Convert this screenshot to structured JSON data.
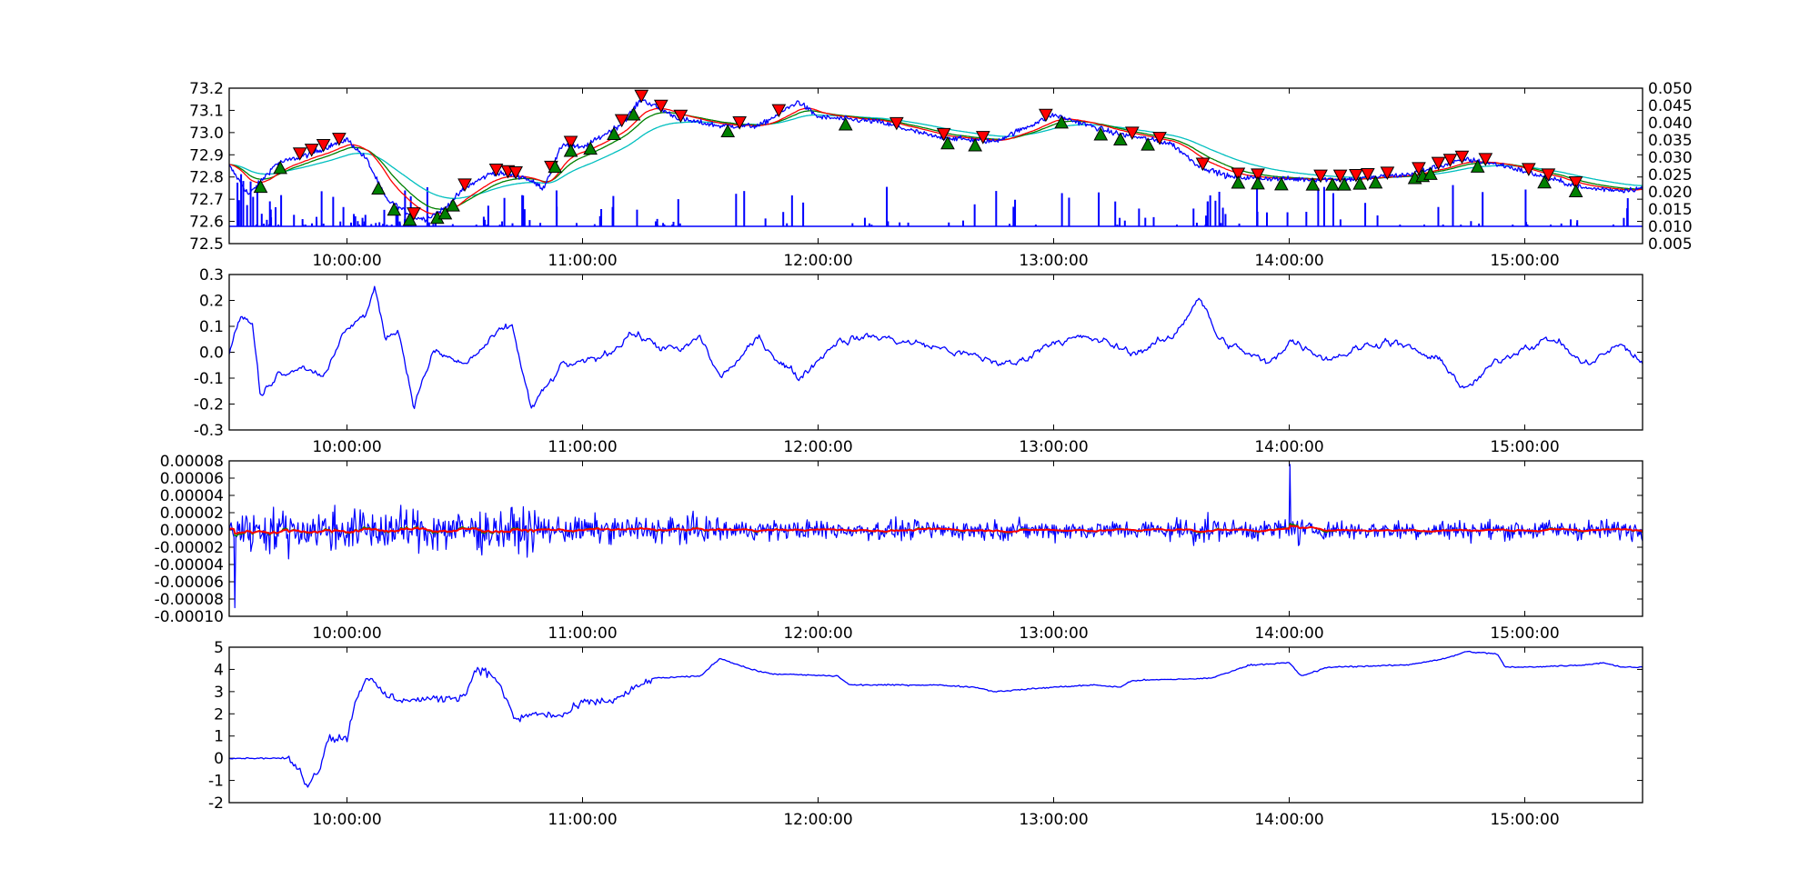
{
  "chart_data": [
    {
      "type": "line",
      "panel": "price",
      "x_range": [
        "09:30:00",
        "15:30:00"
      ],
      "x_ticks": [
        "10:00:00",
        "11:00:00",
        "12:00:00",
        "13:00:00",
        "14:00:00",
        "15:00:00"
      ],
      "ylim": [
        72.5,
        73.2
      ],
      "y_ticks": [
        "72.5",
        "72.6",
        "72.7",
        "72.8",
        "72.9",
        "73.0",
        "73.1",
        "73.2"
      ],
      "secondary_axis": {
        "ylim": [
          0.005,
          0.05
        ],
        "y_ticks": [
          "0.005",
          "0.010",
          "0.015",
          "0.020",
          "0.025",
          "0.030",
          "0.035",
          "0.040",
          "0.045",
          "0.050"
        ],
        "series": {
          "type": "bar",
          "color": "#0000ff",
          "baseline": 0.01
        }
      },
      "price_anchors": [
        [
          "09:30",
          72.85
        ],
        [
          "09:35",
          72.72
        ],
        [
          "09:42",
          72.86
        ],
        [
          "09:50",
          72.9
        ],
        [
          "10:00",
          72.97
        ],
        [
          "10:05",
          72.88
        ],
        [
          "10:10",
          72.7
        ],
        [
          "10:17",
          72.62
        ],
        [
          "10:20",
          72.61
        ],
        [
          "10:25",
          72.66
        ],
        [
          "10:30",
          72.75
        ],
        [
          "10:37",
          72.82
        ],
        [
          "10:45",
          72.8
        ],
        [
          "10:50",
          72.75
        ],
        [
          "10:55",
          72.95
        ],
        [
          "11:00",
          72.93
        ],
        [
          "11:10",
          73.04
        ],
        [
          "11:15",
          73.15
        ],
        [
          "11:25",
          73.06
        ],
        [
          "11:35",
          73.03
        ],
        [
          "11:45",
          73.03
        ],
        [
          "11:55",
          73.14
        ],
        [
          "12:00",
          73.07
        ],
        [
          "12:15",
          73.05
        ],
        [
          "12:30",
          72.98
        ],
        [
          "12:45",
          72.96
        ],
        [
          "13:00",
          73.08
        ],
        [
          "13:15",
          73.0
        ],
        [
          "13:30",
          72.95
        ],
        [
          "13:37",
          72.85
        ],
        [
          "13:45",
          72.8
        ],
        [
          "14:00",
          72.79
        ],
        [
          "14:15",
          72.79
        ],
        [
          "14:30",
          72.81
        ],
        [
          "14:45",
          72.88
        ],
        [
          "14:55",
          72.85
        ],
        [
          "15:05",
          72.8
        ],
        [
          "15:15",
          72.75
        ],
        [
          "15:25",
          72.74
        ],
        [
          "15:30",
          72.75
        ]
      ],
      "series": [
        {
          "color": "#0000ff",
          "style": "raw"
        },
        {
          "color": "#ff0000",
          "style": "moving-average"
        },
        {
          "color": "#008000",
          "style": "moving-average"
        },
        {
          "color": "#00bfbf",
          "style": "moving-average"
        }
      ],
      "sell_markers": [
        "09:48",
        "09:51",
        "09:54",
        "09:58",
        "10:17",
        "10:30",
        "10:38",
        "10:41",
        "10:43",
        "10:52",
        "10:57",
        "11:10",
        "11:15",
        "11:20",
        "11:25",
        "11:40",
        "11:50",
        "12:20",
        "12:32",
        "12:42",
        "12:58",
        "13:20",
        "13:27",
        "13:38",
        "13:47",
        "13:52",
        "14:08",
        "14:13",
        "14:17",
        "14:20",
        "14:25",
        "14:33",
        "14:38",
        "14:41",
        "14:44",
        "14:50",
        "15:01",
        "15:06",
        "15:13"
      ],
      "buy_markers": [
        "09:38",
        "09:43",
        "10:08",
        "10:12",
        "10:16",
        "10:23",
        "10:25",
        "10:27",
        "10:53",
        "10:57",
        "11:02",
        "11:08",
        "11:13",
        "11:37",
        "12:07",
        "12:33",
        "12:40",
        "13:02",
        "13:12",
        "13:17",
        "13:24",
        "13:47",
        "13:52",
        "13:58",
        "14:06",
        "14:11",
        "14:14",
        "14:18",
        "14:22",
        "14:32",
        "14:34",
        "14:36",
        "14:48",
        "15:05",
        "15:13"
      ],
      "marker_colors": {
        "sell": "#ff0000",
        "buy": "#008000",
        "edge": "#000000"
      }
    },
    {
      "type": "line",
      "panel": "oscillator",
      "x_range": [
        "09:30:00",
        "15:30:00"
      ],
      "x_ticks": [
        "10:00:00",
        "11:00:00",
        "12:00:00",
        "13:00:00",
        "14:00:00",
        "15:00:00"
      ],
      "ylim": [
        -0.3,
        0.3
      ],
      "y_ticks": [
        "-0.3",
        "-0.2",
        "-0.1",
        "0.0",
        "0.1",
        "0.2",
        "0.3"
      ],
      "anchors": [
        [
          "09:30",
          0.0
        ],
        [
          "09:33",
          0.15
        ],
        [
          "09:36",
          0.1
        ],
        [
          "09:38",
          -0.18
        ],
        [
          "09:42",
          -0.08
        ],
        [
          "09:48",
          -0.05
        ],
        [
          "09:55",
          -0.08
        ],
        [
          "10:00",
          0.1
        ],
        [
          "10:05",
          0.15
        ],
        [
          "10:07",
          0.24
        ],
        [
          "10:10",
          0.05
        ],
        [
          "10:13",
          0.1
        ],
        [
          "10:17",
          -0.2
        ],
        [
          "10:22",
          0.0
        ],
        [
          "10:30",
          -0.05
        ],
        [
          "10:37",
          0.05
        ],
        [
          "10:42",
          0.1
        ],
        [
          "10:47",
          -0.22
        ],
        [
          "10:55",
          -0.05
        ],
        [
          "11:00",
          -0.05
        ],
        [
          "11:07",
          0.0
        ],
        [
          "11:12",
          0.08
        ],
        [
          "11:20",
          0.02
        ],
        [
          "11:25",
          0.0
        ],
        [
          "11:30",
          0.06
        ],
        [
          "11:35",
          -0.1
        ],
        [
          "11:45",
          0.05
        ],
        [
          "11:55",
          -0.1
        ],
        [
          "12:05",
          0.05
        ],
        [
          "12:15",
          0.06
        ],
        [
          "12:30",
          0.02
        ],
        [
          "12:40",
          -0.02
        ],
        [
          "12:50",
          -0.05
        ],
        [
          "13:00",
          0.05
        ],
        [
          "13:10",
          0.05
        ],
        [
          "13:20",
          0.0
        ],
        [
          "13:30",
          0.05
        ],
        [
          "13:37",
          0.22
        ],
        [
          "13:42",
          0.05
        ],
        [
          "13:55",
          -0.05
        ],
        [
          "14:00",
          0.05
        ],
        [
          "14:10",
          -0.02
        ],
        [
          "14:25",
          0.05
        ],
        [
          "14:40",
          -0.05
        ],
        [
          "14:45",
          -0.15
        ],
        [
          "14:52",
          -0.05
        ],
        [
          "15:00",
          0.03
        ],
        [
          "15:08",
          0.05
        ],
        [
          "15:15",
          -0.05
        ],
        [
          "15:25",
          0.03
        ],
        [
          "15:30",
          -0.05
        ]
      ],
      "series": [
        {
          "color": "#0000ff"
        }
      ]
    },
    {
      "type": "line",
      "panel": "returns",
      "x_range": [
        "09:30:00",
        "15:30:00"
      ],
      "x_ticks": [
        "10:00:00",
        "11:00:00",
        "12:00:00",
        "13:00:00",
        "14:00:00",
        "15:00:00"
      ],
      "ylim": [
        -0.0001,
        8e-05
      ],
      "y_ticks": [
        "-0.00010",
        "-0.00008",
        "-0.00006",
        "-0.00004",
        "-0.00002",
        "0.00000",
        "0.00002",
        "0.00004",
        "0.00006",
        "0.00008"
      ],
      "series": [
        {
          "color": "#0000ff",
          "style": "raw"
        },
        {
          "color": "#008000",
          "style": "smoothed"
        },
        {
          "color": "#ff0000",
          "style": "smoothed"
        }
      ]
    },
    {
      "type": "line",
      "panel": "cumulative",
      "x_range": [
        "09:30:00",
        "15:30:00"
      ],
      "x_ticks": [
        "10:00:00",
        "11:00:00",
        "12:00:00",
        "13:00:00",
        "14:00:00",
        "15:00:00"
      ],
      "ylim": [
        -2,
        5
      ],
      "y_ticks": [
        "-2",
        "-1",
        "0",
        "1",
        "2",
        "3",
        "4",
        "5"
      ],
      "anchors": [
        [
          "09:30",
          0.0
        ],
        [
          "09:45",
          0.0
        ],
        [
          "09:48",
          -0.6
        ],
        [
          "09:50",
          -1.2
        ],
        [
          "09:53",
          -0.5
        ],
        [
          "09:55",
          0.9
        ],
        [
          "10:00",
          0.9
        ],
        [
          "10:02",
          2.5
        ],
        [
          "10:05",
          3.7
        ],
        [
          "10:10",
          2.8
        ],
        [
          "10:15",
          2.6
        ],
        [
          "10:25",
          2.7
        ],
        [
          "10:30",
          2.8
        ],
        [
          "10:33",
          4.1
        ],
        [
          "10:38",
          3.6
        ],
        [
          "10:43",
          1.7
        ],
        [
          "10:47",
          2.0
        ],
        [
          "10:55",
          1.9
        ],
        [
          "11:00",
          2.5
        ],
        [
          "11:08",
          2.6
        ],
        [
          "11:13",
          3.1
        ],
        [
          "11:18",
          3.6
        ],
        [
          "11:30",
          3.7
        ],
        [
          "11:35",
          4.5
        ],
        [
          "11:43",
          4.0
        ],
        [
          "11:48",
          3.8
        ],
        [
          "12:05",
          3.7
        ],
        [
          "12:08",
          3.3
        ],
        [
          "12:30",
          3.3
        ],
        [
          "12:40",
          3.2
        ],
        [
          "12:45",
          3.0
        ],
        [
          "13:00",
          3.2
        ],
        [
          "13:10",
          3.3
        ],
        [
          "13:17",
          3.2
        ],
        [
          "13:20",
          3.5
        ],
        [
          "13:40",
          3.6
        ],
        [
          "13:50",
          4.2
        ],
        [
          "14:00",
          4.3
        ],
        [
          "14:03",
          3.7
        ],
        [
          "14:10",
          4.1
        ],
        [
          "14:30",
          4.2
        ],
        [
          "14:40",
          4.5
        ],
        [
          "14:45",
          4.8
        ],
        [
          "14:53",
          4.7
        ],
        [
          "14:55",
          4.1
        ],
        [
          "15:00",
          4.1
        ],
        [
          "15:15",
          4.2
        ],
        [
          "15:20",
          4.3
        ],
        [
          "15:25",
          4.1
        ],
        [
          "15:30",
          4.1
        ]
      ],
      "series": [
        {
          "color": "#0000ff"
        }
      ]
    }
  ]
}
